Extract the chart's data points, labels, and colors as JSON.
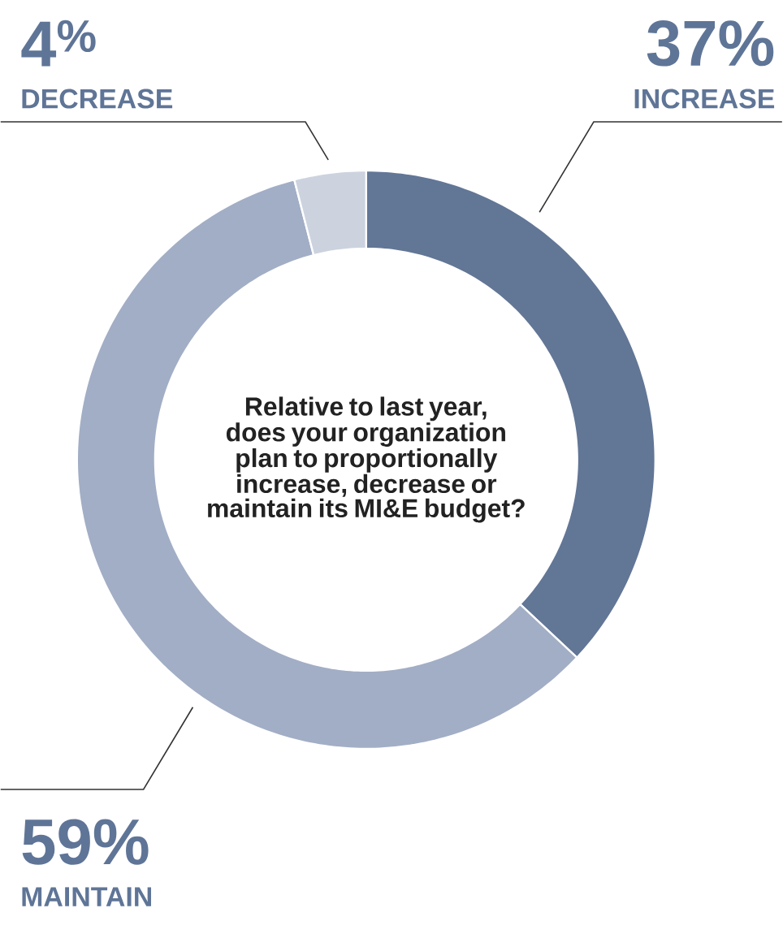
{
  "chart_data": {
    "type": "donut",
    "title": "Relative to last year, does your organization plan to proportionally increase, decrease or maintain its MI&E budget?",
    "categories": [
      "INCREASE",
      "MAINTAIN",
      "DECREASE"
    ],
    "values": [
      37,
      59,
      4
    ],
    "value_labels": [
      "37%",
      "59%",
      "4$^{%}$"
    ],
    "colors": [
      "#627696",
      "#a2aec5",
      "#ccd3df"
    ]
  }
}
